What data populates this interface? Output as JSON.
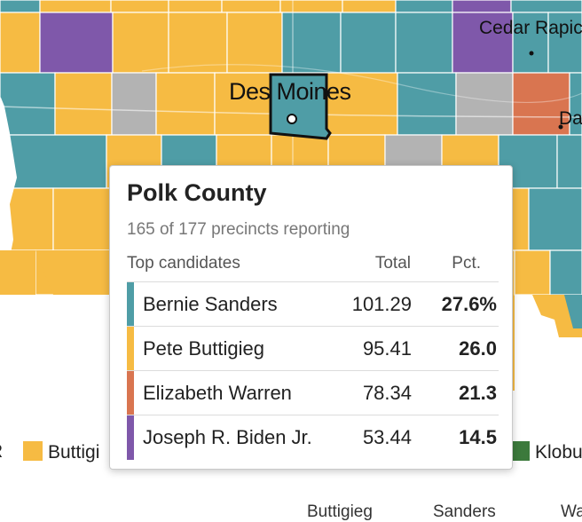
{
  "colors": {
    "sanders": "#4f9da6",
    "buttigieg": "#f6bb43",
    "warren": "#d97550",
    "biden": "#7f58aa",
    "klobuchar": "#3c7a3c",
    "tie": "#b3b3b3",
    "border": "#ffffff",
    "highlight": "#111111"
  },
  "map": {
    "cities": {
      "des_moines": "Des Moines",
      "cedar_rapids": "Cedar Rapic",
      "davenport": "Da"
    },
    "highlighted_county": "Polk County"
  },
  "tooltip": {
    "title": "Polk County",
    "subtitle": "165 of 177 precincts reporting",
    "headers": {
      "candidates": "Top candidates",
      "total": "Total",
      "pct": "Pct."
    },
    "rows": [
      {
        "name": "Bernie Sanders",
        "total": "101.29",
        "pct": "27.6%",
        "color": "#4f9da6"
      },
      {
        "name": "Pete Buttigieg",
        "total": "95.41",
        "pct": "26.0",
        "color": "#f6bb43"
      },
      {
        "name": "Elizabeth Warren",
        "total": "78.34",
        "pct": "21.3",
        "color": "#d97550"
      },
      {
        "name": "Joseph R. Biden Jr.",
        "total": "53.44",
        "pct": "14.5",
        "color": "#7f58aa"
      }
    ]
  },
  "legend": {
    "r_label": "R",
    "buttigieg": "Buttigi",
    "klobuchar": "Klobu"
  },
  "table_headers": {
    "buttigieg": "Buttigieg",
    "sanders": "Sanders",
    "warren": "Wa"
  }
}
